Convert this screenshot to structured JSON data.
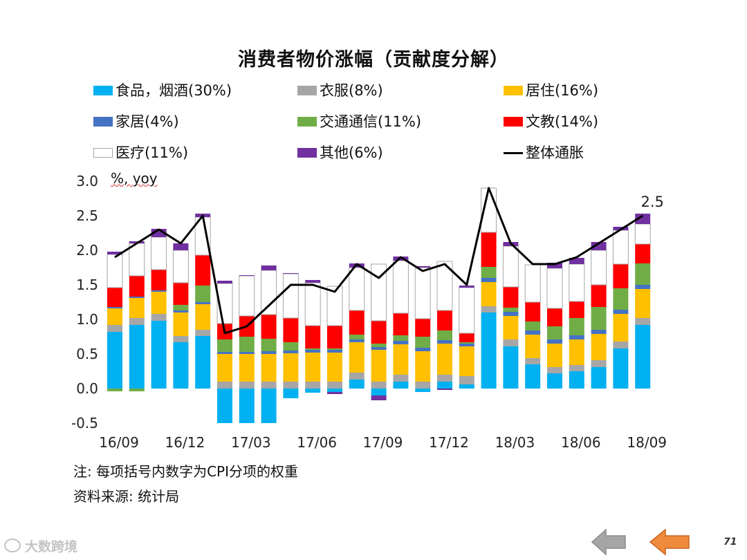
{
  "chart_data": {
    "type": "bar",
    "title": "消费者物价涨幅（贡献度分解）",
    "unit_label": "%, yoy",
    "ylim": [
      -0.5,
      3.0
    ],
    "yticks": [
      "3.0",
      "2.5",
      "2.0",
      "1.5",
      "1.0",
      "0.5",
      "0.0",
      "-0.5"
    ],
    "ytick_values": [
      3.0,
      2.5,
      2.0,
      1.5,
      1.0,
      0.5,
      0.0,
      -0.5
    ],
    "categories": [
      "16/09",
      "16/10",
      "16/11",
      "16/12",
      "17/01",
      "17/02",
      "17/03",
      "17/04",
      "17/05",
      "17/06",
      "17/07",
      "17/08",
      "17/09",
      "17/10",
      "17/11",
      "17/12",
      "18/01",
      "18/02",
      "18/03",
      "18/04",
      "18/05",
      "18/06",
      "18/07",
      "18/08",
      "18/09"
    ],
    "xticks": [
      "16/09",
      "16/12",
      "17/03",
      "17/06",
      "17/09",
      "17/12",
      "18/03",
      "18/06",
      "18/09"
    ],
    "series": [
      {
        "name": "食品，烟酒(30%)",
        "color": "#00B0F0",
        "values": [
          0.82,
          0.92,
          0.98,
          0.67,
          0.76,
          -0.5,
          -0.5,
          -0.5,
          -0.14,
          -0.06,
          -0.05,
          0.13,
          -0.1,
          0.1,
          -0.05,
          0.1,
          0.06,
          1.1,
          0.61,
          0.35,
          0.22,
          0.25,
          0.31,
          0.58,
          0.92
        ]
      },
      {
        "name": "衣服(8%)",
        "color": "#A6A6A6",
        "values": [
          0.1,
          0.1,
          0.1,
          0.09,
          0.09,
          0.1,
          0.1,
          0.1,
          0.1,
          0.1,
          0.1,
          0.1,
          0.1,
          0.1,
          0.1,
          0.1,
          0.12,
          0.09,
          0.1,
          0.09,
          0.09,
          0.09,
          0.1,
          0.1,
          0.1
        ]
      },
      {
        "name": "居住(16%)",
        "color": "#FFC000",
        "values": [
          0.24,
          0.29,
          0.32,
          0.34,
          0.37,
          0.4,
          0.4,
          0.4,
          0.41,
          0.42,
          0.42,
          0.44,
          0.46,
          0.44,
          0.44,
          0.45,
          0.43,
          0.35,
          0.34,
          0.34,
          0.34,
          0.37,
          0.38,
          0.4,
          0.42
        ]
      },
      {
        "name": "家居(4%)",
        "color": "#4472C4",
        "values": [
          0.02,
          0.02,
          0.02,
          0.03,
          0.03,
          0.03,
          0.03,
          0.04,
          0.04,
          0.04,
          0.04,
          0.04,
          0.04,
          0.05,
          0.05,
          0.05,
          0.04,
          0.06,
          0.06,
          0.06,
          0.06,
          0.06,
          0.06,
          0.06,
          0.06
        ]
      },
      {
        "name": "交通通信(11%)",
        "color": "#70AD47",
        "values": [
          -0.04,
          -0.04,
          0.0,
          0.08,
          0.24,
          0.18,
          0.22,
          0.18,
          0.12,
          0.02,
          0.02,
          0.07,
          0.05,
          0.08,
          0.16,
          0.14,
          0.02,
          0.16,
          0.06,
          0.13,
          0.19,
          0.25,
          0.33,
          0.31,
          0.31
        ]
      },
      {
        "name": "文教(14%)",
        "color": "#FF0000",
        "values": [
          0.28,
          0.3,
          0.3,
          0.32,
          0.44,
          0.23,
          0.3,
          0.35,
          0.35,
          0.33,
          0.33,
          0.35,
          0.33,
          0.32,
          0.26,
          0.29,
          0.13,
          0.5,
          0.3,
          0.28,
          0.26,
          0.24,
          0.32,
          0.35,
          0.28
        ]
      },
      {
        "name": "医疗(11%)",
        "color": "#FFFFFF",
        "values": [
          0.48,
          0.47,
          0.47,
          0.47,
          0.55,
          0.58,
          0.58,
          0.64,
          0.64,
          0.62,
          0.57,
          0.62,
          0.82,
          0.76,
          0.74,
          0.71,
          0.66,
          0.64,
          0.59,
          0.54,
          0.58,
          0.54,
          0.5,
          0.49,
          0.29
        ]
      },
      {
        "name": "其他(6%)",
        "color": "#7030A0",
        "values": [
          0.04,
          0.03,
          0.12,
          0.1,
          0.05,
          0.04,
          0.01,
          0.07,
          0.01,
          0.04,
          -0.03,
          0.06,
          -0.07,
          0.06,
          0.02,
          -0.02,
          0.03,
          0.0,
          0.06,
          0.0,
          0.08,
          0.09,
          0.12,
          0.05,
          0.15
        ]
      }
    ],
    "line_series": {
      "name": "整体通胀",
      "color": "#000000",
      "values": [
        1.9,
        2.1,
        2.3,
        2.1,
        2.5,
        0.8,
        0.9,
        1.2,
        1.5,
        1.5,
        1.4,
        1.8,
        1.6,
        1.9,
        1.7,
        1.8,
        1.5,
        2.9,
        2.1,
        1.8,
        1.8,
        1.9,
        2.1,
        2.3,
        2.5
      ]
    },
    "annotation": "2.5"
  },
  "notes": {
    "note1": "注:  每项括号内数字为CPI分项的权重",
    "note2": "资料来源: 统计局"
  },
  "watermark": "大数跨境",
  "page_number": "71",
  "nav": {
    "back_icon": "left-arrow-gray",
    "back_color": "#A6A6A6",
    "forward_icon": "left-arrow-orange",
    "forward_color": "#F08A3C"
  }
}
